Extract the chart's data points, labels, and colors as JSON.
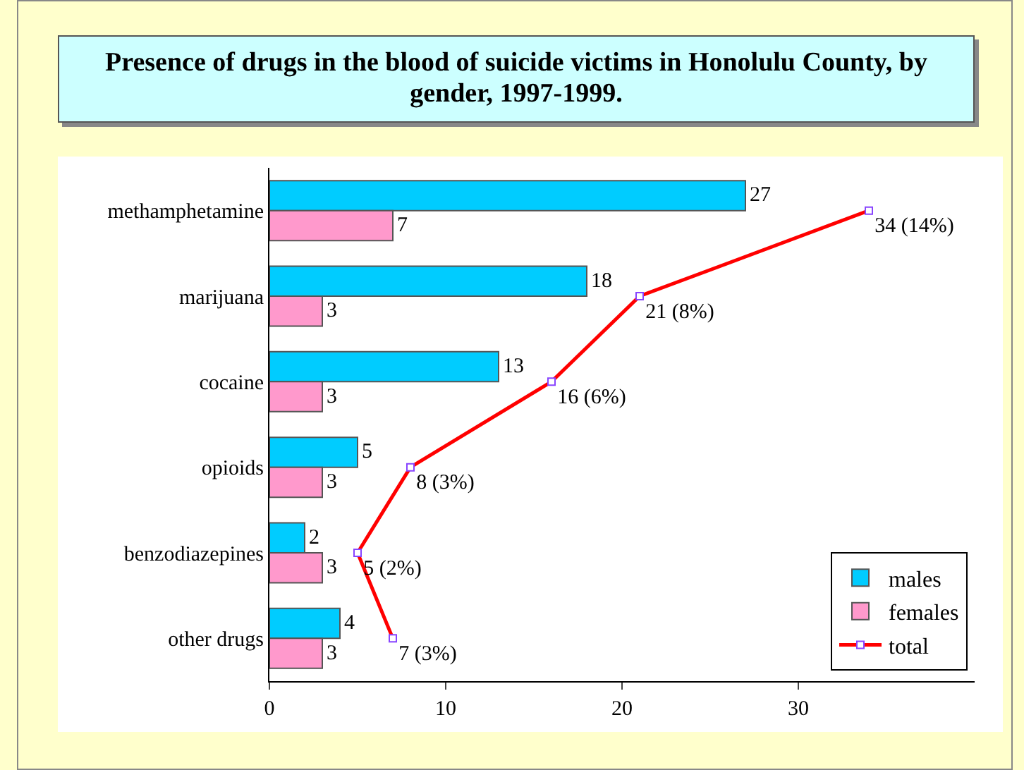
{
  "chart_data": {
    "type": "bar",
    "orientation": "horizontal",
    "title": "Presence of drugs in the blood of suicide victims in Honolulu County, by gender, 1997-1999.",
    "categories": [
      "methamphetamine",
      "marijuana",
      "cocaine",
      "opioids",
      "benzodiazepines",
      "other drugs"
    ],
    "series": [
      {
        "name": "males",
        "color": "#00ccff",
        "values": [
          27,
          18,
          13,
          5,
          2,
          4
        ]
      },
      {
        "name": "females",
        "color": "#ff99cc",
        "values": [
          7,
          3,
          3,
          3,
          3,
          3
        ]
      },
      {
        "name": "total",
        "type": "line",
        "color": "#ff0000",
        "values": [
          34,
          21,
          16,
          8,
          5,
          7
        ],
        "value_labels": [
          "34 (14%)",
          "21 (8%)",
          "16 (6%)",
          "8 (3%)",
          "5 (2%)",
          "7 (3%)"
        ]
      }
    ],
    "xlim": [
      0,
      40
    ],
    "xticks": [
      0,
      10,
      20,
      30
    ],
    "data_labels": true,
    "grid": false,
    "legend": "bottom right",
    "marker": "square",
    "line_style": "solid"
  }
}
